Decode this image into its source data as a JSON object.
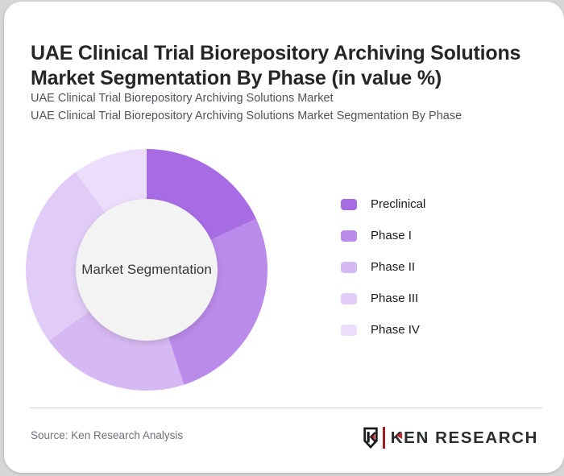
{
  "header": {
    "title_line1": "UAE Clinical Trial Biorepository Archiving Solutions",
    "title_line2": "Market Segmentation By Phase (in value %)",
    "subtitle1": "UAE Clinical Trial Biorepository Archiving Solutions Market",
    "subtitle2": "UAE Clinical Trial Biorepository Archiving Solutions Market Segmentation By Phase"
  },
  "chart_data": {
    "type": "pie",
    "donut": true,
    "title": "UAE Clinical Trial Biorepository Archiving Solutions Market Segmentation By Phase (in value %)",
    "center_label": "Market Segmentation",
    "unit": "%",
    "start_angle_deg": 0,
    "legend_position": "right",
    "categories": [
      "Preclinical",
      "Phase I",
      "Phase II",
      "Phase III",
      "Phase IV"
    ],
    "values": [
      18,
      27,
      20,
      25,
      10
    ],
    "colors": [
      "#a76ce4",
      "#ba8bea",
      "#d6b9f2",
      "#e0ccf6",
      "#ecdefa"
    ]
  },
  "footer": {
    "source": "Source: Ken Research Analysis",
    "logo": {
      "k": "K",
      "rest": "EN RESEARCH",
      "logo_red": "#c1272d"
    }
  }
}
